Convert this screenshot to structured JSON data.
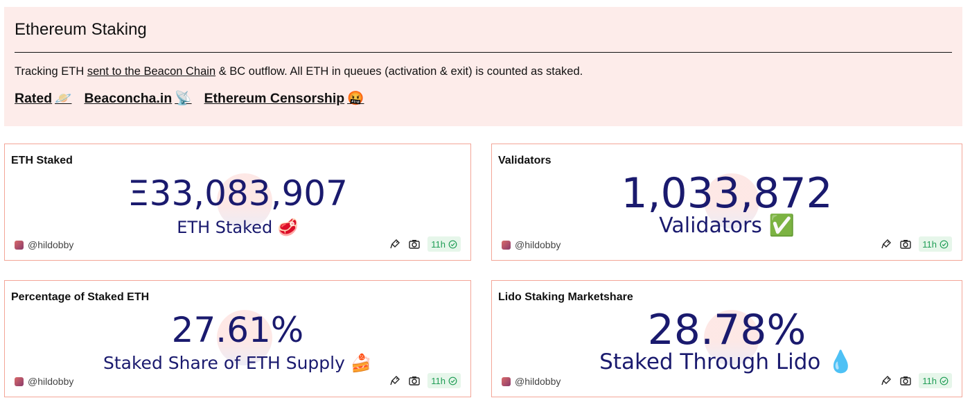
{
  "header": {
    "title": "Ethereum Staking",
    "desc_prefix": "Tracking ETH ",
    "desc_link": "sent to the Beacon Chain",
    "desc_suffix": " & BC outflow. All ETH in queues (activation & exit) is counted as staked.",
    "links": [
      {
        "label": "Rated",
        "emoji": "🪐"
      },
      {
        "label": "Beaconcha.in",
        "emoji": "📡"
      },
      {
        "label": "Ethereum Censorship",
        "emoji": "🤬"
      }
    ]
  },
  "cards": [
    {
      "title": "ETH Staked",
      "value": "Ξ33,083,907",
      "subtitle": "ETH Staked",
      "subtitle_emoji": "🥩",
      "author": "@hildobby",
      "age": "11h"
    },
    {
      "title": "Validators",
      "value": "1,033,872",
      "subtitle": "Validators",
      "subtitle_emoji": "✅",
      "author": "@hildobby",
      "age": "11h"
    },
    {
      "title": "Percentage of Staked ETH",
      "value": "27.61%",
      "subtitle": "Staked Share of ETH Supply",
      "subtitle_emoji": "🍰",
      "author": "@hildobby",
      "age": "11h"
    },
    {
      "title": "Lido Staking Marketshare",
      "value": "28.78%",
      "subtitle": "Staked Through Lido",
      "subtitle_emoji": "💧",
      "author": "@hildobby",
      "age": "11h"
    }
  ],
  "colors": {
    "header_bg": "#fdecea",
    "card_border": "#f3a597",
    "counter_text": "#1a1a6e",
    "badge_bg": "#e6f6ea",
    "badge_text": "#1f9d55"
  },
  "icons": {
    "embed": "embed-icon",
    "screenshot": "camera-icon",
    "fresh": "check-circle-icon"
  }
}
